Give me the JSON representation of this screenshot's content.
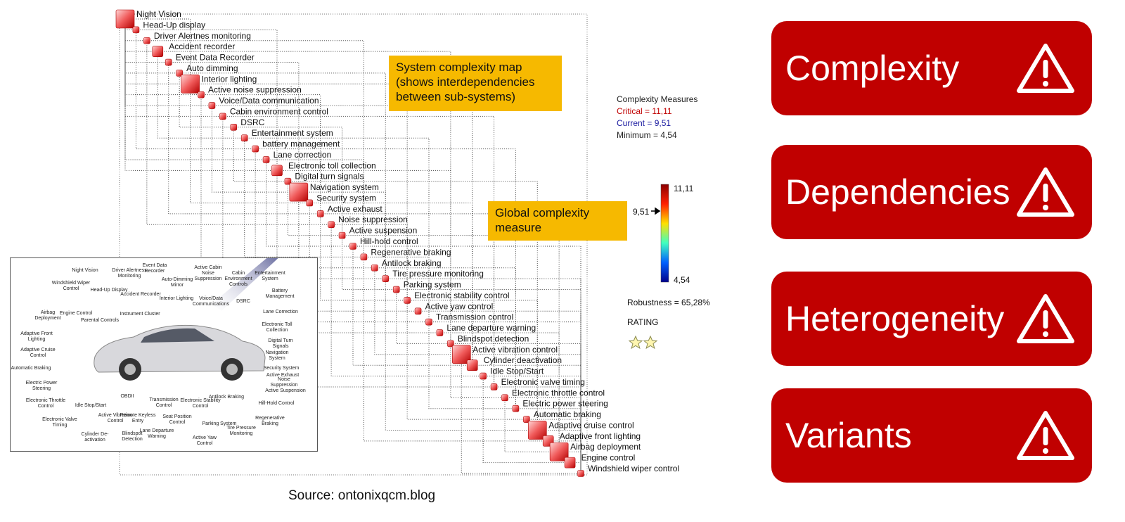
{
  "map": {
    "nodes": [
      "Night Vision",
      "Head-Up display",
      "Driver Alertnes monitoring",
      "Accident recorder",
      "Event Data Recorder",
      "Auto dimming",
      "Interior lighting",
      "Active noise suppression",
      "Voice/Data communication",
      "Cabin environment control",
      "DSRC",
      "Entertainment system",
      "battery management",
      "Lane correction",
      "Electronic toll collection",
      "Digital turn signals",
      "Navigation system",
      "Security system",
      "Active exhaust",
      "Noise suppression",
      "Active suspension",
      "Hill-hold control",
      "Regenerative braking",
      "Antilock braking",
      "Tire pressure monitoring",
      "Parking system",
      "Electronic stability control",
      "Active yaw control",
      "Transmission control",
      "Lane departure warning",
      "Blindspot detection",
      "Active vibration control",
      "Cylinder deactivation",
      "Idle Stop/Start",
      "Electronic valve timing",
      "Electronic throttle control",
      "Electric power steering",
      "Automatic braking",
      "Adaptive cruise control",
      "Adaptive front lighting",
      "Airbag deployment",
      "Engine control",
      "Windshield wiper control"
    ],
    "callout_map": "System complexity map (shows interdependencies between sub-systems)",
    "callout_global": "Global complexity measure"
  },
  "measures": {
    "title": "Complexity Measures",
    "critical": "Critical = 11,11",
    "current": "Current = 9,51",
    "minimum": "Minimum = 4,54",
    "scale_max": "11,11",
    "scale_current": "9,51",
    "scale_min": "4,54",
    "robustness": "Robustness = 65,28%",
    "rating": "RATING"
  },
  "car": {
    "labels": [
      "Night Vision",
      "Driver Alertness Monitoring",
      "Event Data Recorder",
      "Active Cabin Noise Suppression",
      "Cabin Environment Controls",
      "Entertainment System",
      "Windshield Wiper Control",
      "Head-Up Display",
      "Accident Recorder",
      "Auto-Dimming Mirror",
      "Interior Lighting",
      "Voice/Data Communications",
      "DSRC",
      "Battery Management",
      "Airbag Deployment",
      "Engine Control",
      "Parental Controls",
      "Instrument Cluster",
      "Lane Correction",
      "Electronic Toll Collection",
      "Adaptive Front Lighting",
      "Digital Turn Signals",
      "Adaptive Cruise Control",
      "Navigation System",
      "Automatic Braking",
      "Security System",
      "Active Exhaust",
      "Noise Suppression",
      "Electric Power Steering",
      "Active Suspension",
      "Electronic Throttle Control",
      "Idle Stop/Start",
      "OBDII",
      "Hill-Hold Control",
      "Electronic Valve Timing",
      "Active Vibration Control",
      "Remote Keyless Entry",
      "Transmission Control",
      "Electronic Stability Control",
      "Antilock Braking",
      "Regenerative Braking",
      "Seat Position Control",
      "Parking System",
      "Tire Pressure Monitoring",
      "Cylinder De-activation",
      "Blindspot Detection",
      "Lane Departure Warning",
      "Active Yaw Control"
    ]
  },
  "panels": [
    "Complexity",
    "Dependencies",
    "Heterogeneity",
    "Variants"
  ],
  "source": "Source: ontonixqcm.blog"
}
